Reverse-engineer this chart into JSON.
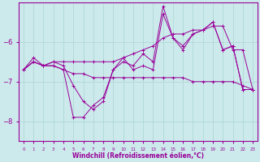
{
  "xlabel": "Windchill (Refroidissement éolien,°C)",
  "background_color": "#cceaeb",
  "line_color": "#990099",
  "grid_color": "#aad4d4",
  "hours": [
    0,
    1,
    2,
    3,
    4,
    5,
    6,
    7,
    8,
    9,
    10,
    11,
    12,
    13,
    14,
    15,
    16,
    17,
    18,
    19,
    20,
    21,
    22,
    23
  ],
  "line1": [
    -6.7,
    -6.5,
    -6.6,
    -6.5,
    -6.5,
    -6.5,
    -6.5,
    -6.5,
    -6.5,
    -6.5,
    -6.4,
    -6.3,
    -6.2,
    -6.1,
    -5.9,
    -5.8,
    -5.8,
    -5.7,
    -5.7,
    -5.6,
    -5.6,
    -6.2,
    -6.2,
    -7.2
  ],
  "line2": [
    -6.7,
    -6.5,
    -6.6,
    -6.6,
    -6.7,
    -6.8,
    -6.8,
    -6.9,
    -6.9,
    -6.9,
    -6.9,
    -6.9,
    -6.9,
    -6.9,
    -6.9,
    -6.9,
    -6.9,
    -7.0,
    -7.0,
    -7.0,
    -7.0,
    -7.0,
    -7.1,
    -7.2
  ],
  "line3": [
    -6.7,
    -6.5,
    -6.6,
    -6.6,
    -6.7,
    -7.9,
    -7.9,
    -7.6,
    -7.4,
    -6.7,
    -6.5,
    -6.6,
    -6.3,
    -6.5,
    -5.1,
    -5.9,
    -6.2,
    -5.8,
    -5.7,
    -5.5,
    -6.2,
    -6.1,
    -7.2,
    -7.2
  ],
  "line4": [
    -6.7,
    -6.4,
    -6.6,
    -6.5,
    -6.6,
    -7.1,
    -7.5,
    -7.7,
    -7.5,
    -6.7,
    -6.4,
    -6.7,
    -6.6,
    -6.7,
    -5.3,
    -5.9,
    -6.1,
    -5.8,
    -5.7,
    -5.5,
    -6.2,
    -6.1,
    -7.2,
    -7.2
  ],
  "ylim": [
    -8.5,
    -5.0
  ],
  "yticks": [
    -8,
    -7,
    -6
  ],
  "xlim": [
    -0.5,
    23.5
  ]
}
